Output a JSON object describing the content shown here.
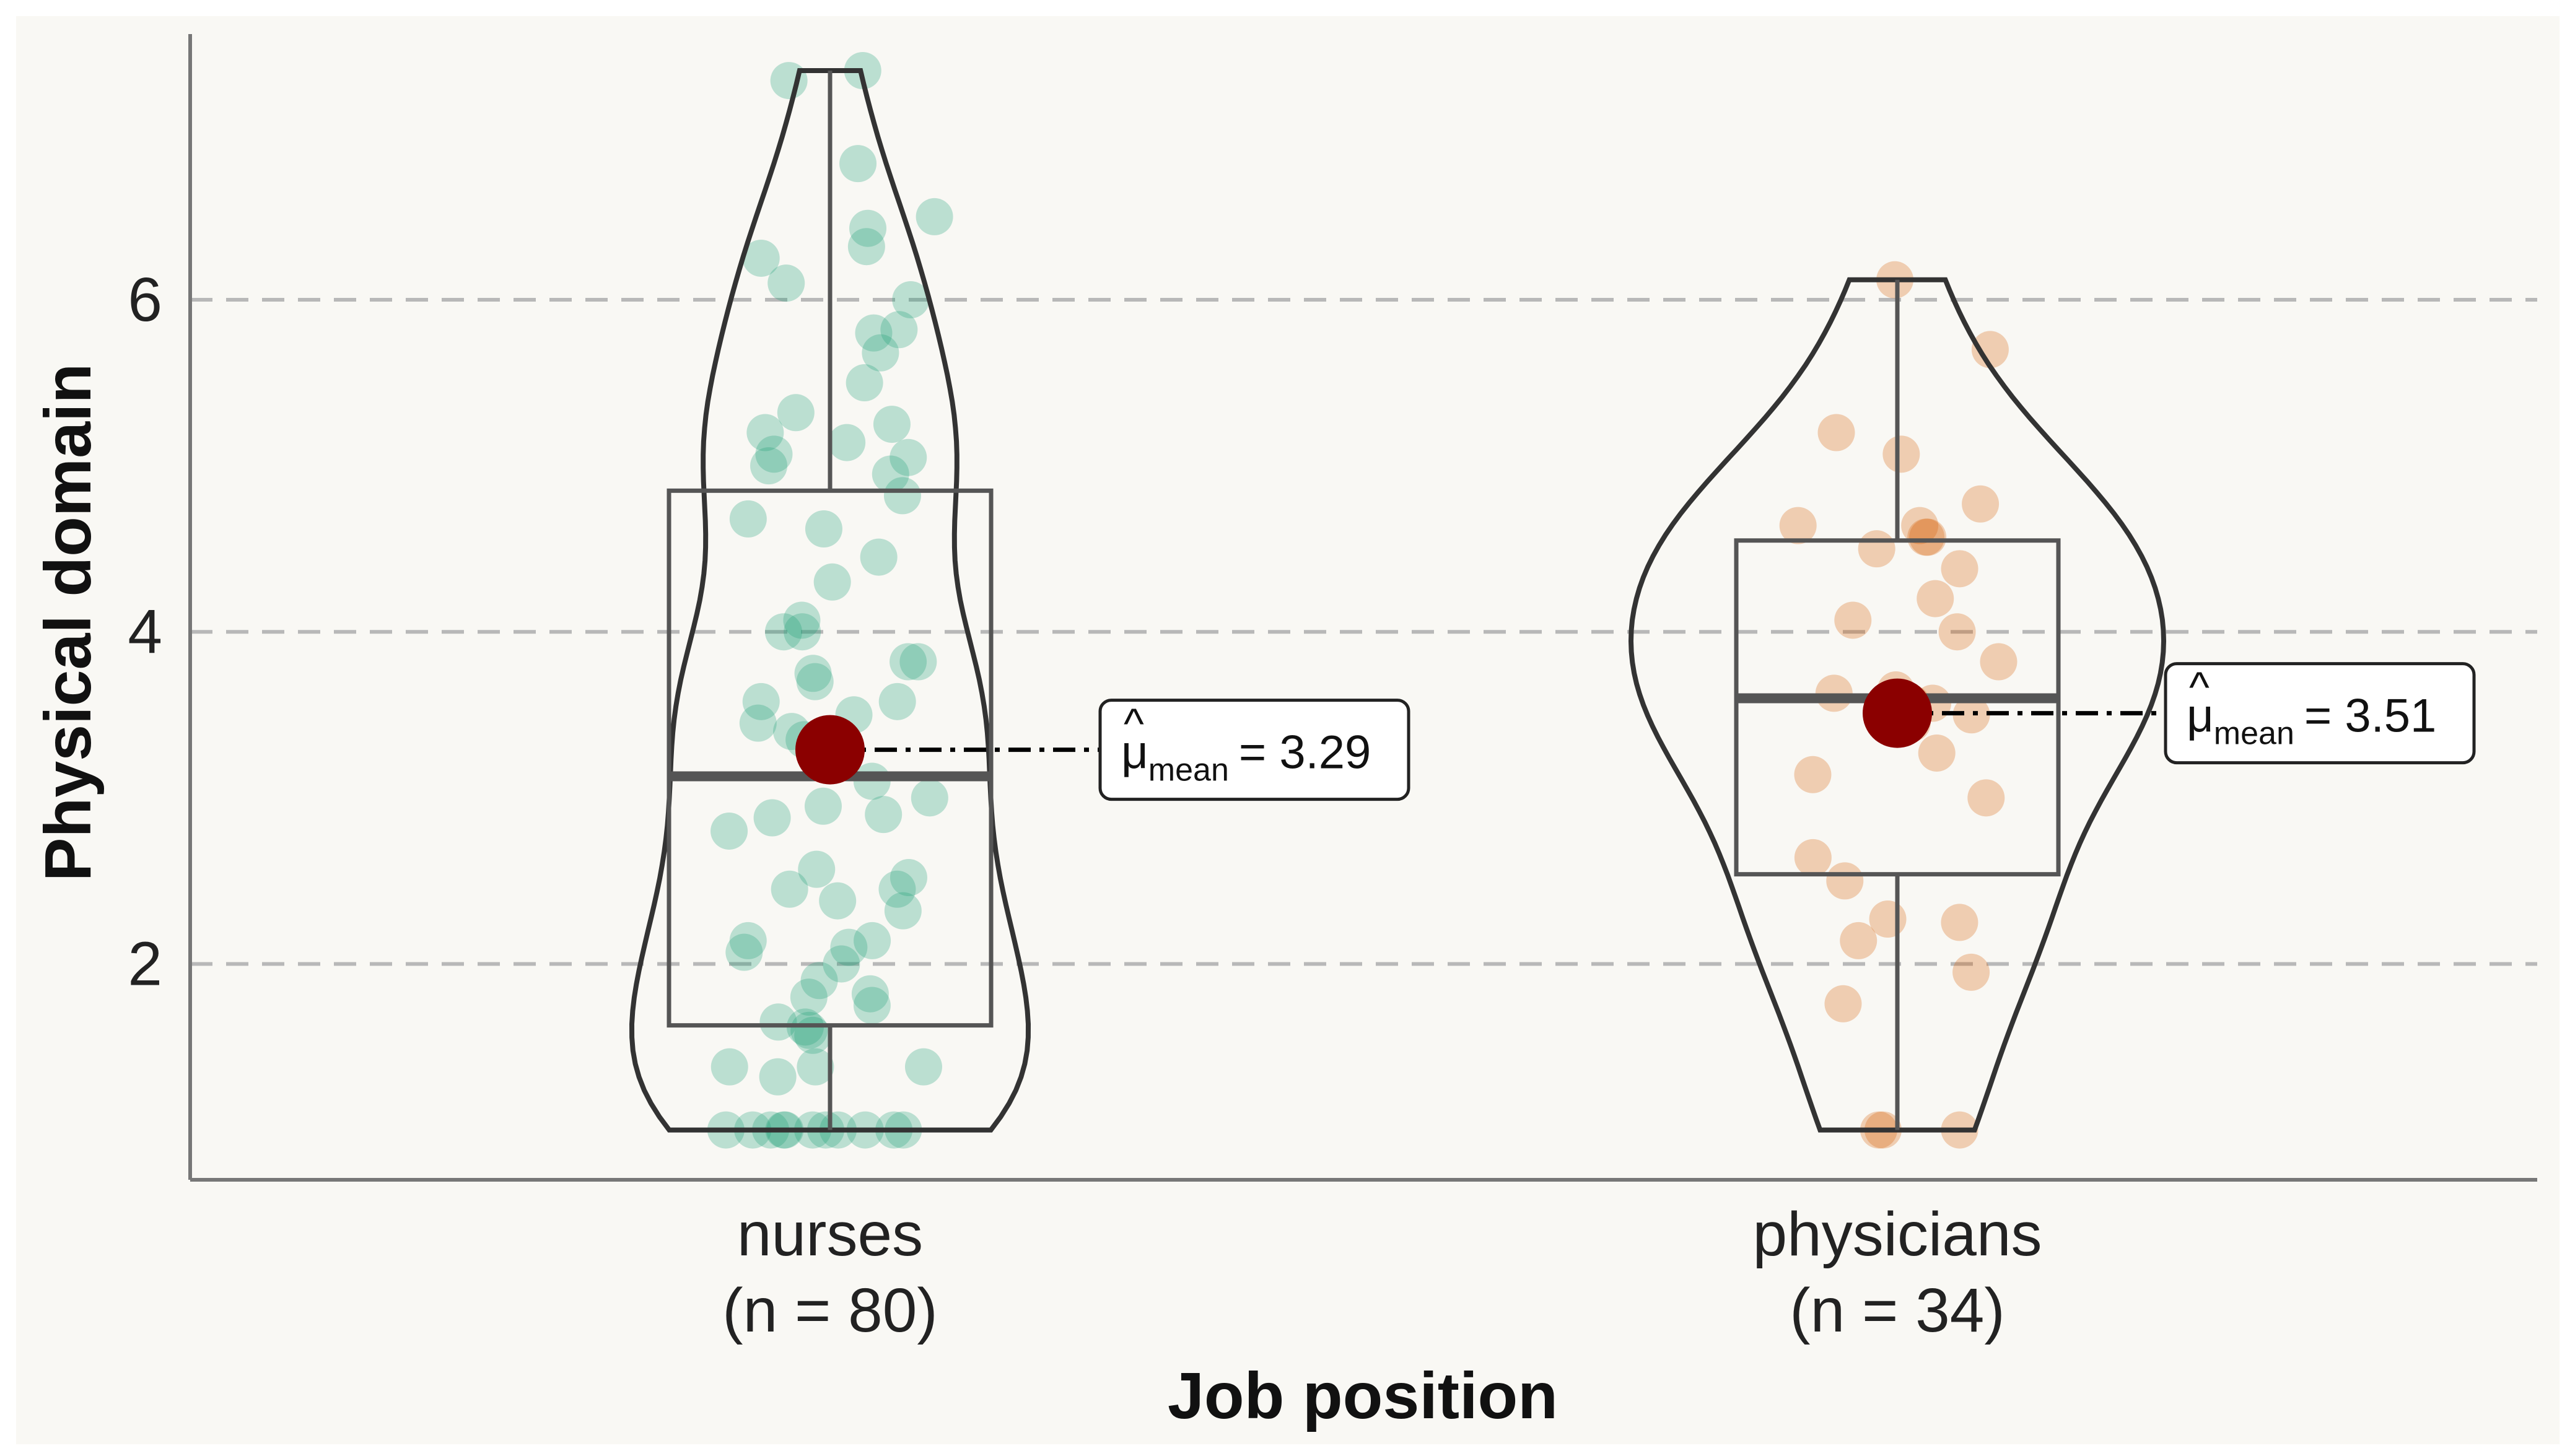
{
  "chart_data": {
    "type": "violin-box",
    "title": "",
    "xlabel": "Job position",
    "ylabel": "Physical domain",
    "ylim": [
      0.7,
      7.6
    ],
    "yticks": [
      "2",
      "4",
      "6"
    ],
    "grid": "dashed horizontal",
    "background": "#f9f8f4",
    "groups": [
      {
        "label": "nurses",
        "n_label": "(n = 80)",
        "color": "#1b9e77",
        "mean": 3.29,
        "mean_label": "= 3.29",
        "box": {
          "q1": 1.63,
          "median": 3.13,
          "q3": 4.85,
          "whisker_low": 1.0,
          "whisker_high": 7.38
        },
        "points": [
          7.38,
          7.32,
          6.82,
          6.5,
          6.43,
          6.32,
          6.25,
          6.0,
          5.8,
          5.82,
          5.68,
          5.32,
          5.25,
          5.2,
          5.14,
          5.07,
          5.0,
          4.95,
          5.05,
          4.82,
          4.68,
          4.62,
          4.45,
          4.07,
          4.0,
          4.0,
          3.82,
          3.82,
          3.75,
          3.7,
          3.58,
          3.58,
          3.45,
          3.4,
          3.35,
          3.2,
          3.0,
          2.95,
          2.9,
          2.88,
          2.57,
          2.52,
          2.45,
          2.45,
          2.38,
          2.32,
          2.14,
          2.14,
          2.1,
          2.07,
          1.82,
          1.8,
          1.75,
          1.65,
          1.62,
          1.6,
          1.57,
          1.38,
          1.38,
          1.38,
          1.32,
          1.0,
          1.0,
          1.0,
          1.0,
          1.0,
          1.0,
          1.0,
          1.0,
          1.0,
          1.0,
          1.0,
          3.5,
          3.1,
          2.8,
          2.0,
          1.9,
          4.3,
          5.5,
          6.1
        ]
      },
      {
        "label": "physicians",
        "n_label": "(n = 34)",
        "color": "#d95f02",
        "mean": 3.51,
        "mean_label": "= 3.51",
        "box": {
          "q1": 2.54,
          "median": 3.6,
          "q3": 4.55,
          "whisker_low": 1.0,
          "whisker_high": 6.12
        },
        "points": [
          6.12,
          5.7,
          5.2,
          5.07,
          4.77,
          4.64,
          4.64,
          4.57,
          4.57,
          4.5,
          4.38,
          4.2,
          4.07,
          4.0,
          3.82,
          3.65,
          3.63,
          3.57,
          3.57,
          3.5,
          3.45,
          3.27,
          3.14,
          3.0,
          2.64,
          2.5,
          2.27,
          2.25,
          2.14,
          1.95,
          1.76,
          1.0,
          1.0,
          1.0
        ]
      }
    ]
  },
  "mean_symbol": {
    "base": "μ",
    "subscript": "mean",
    "hat": "^"
  }
}
